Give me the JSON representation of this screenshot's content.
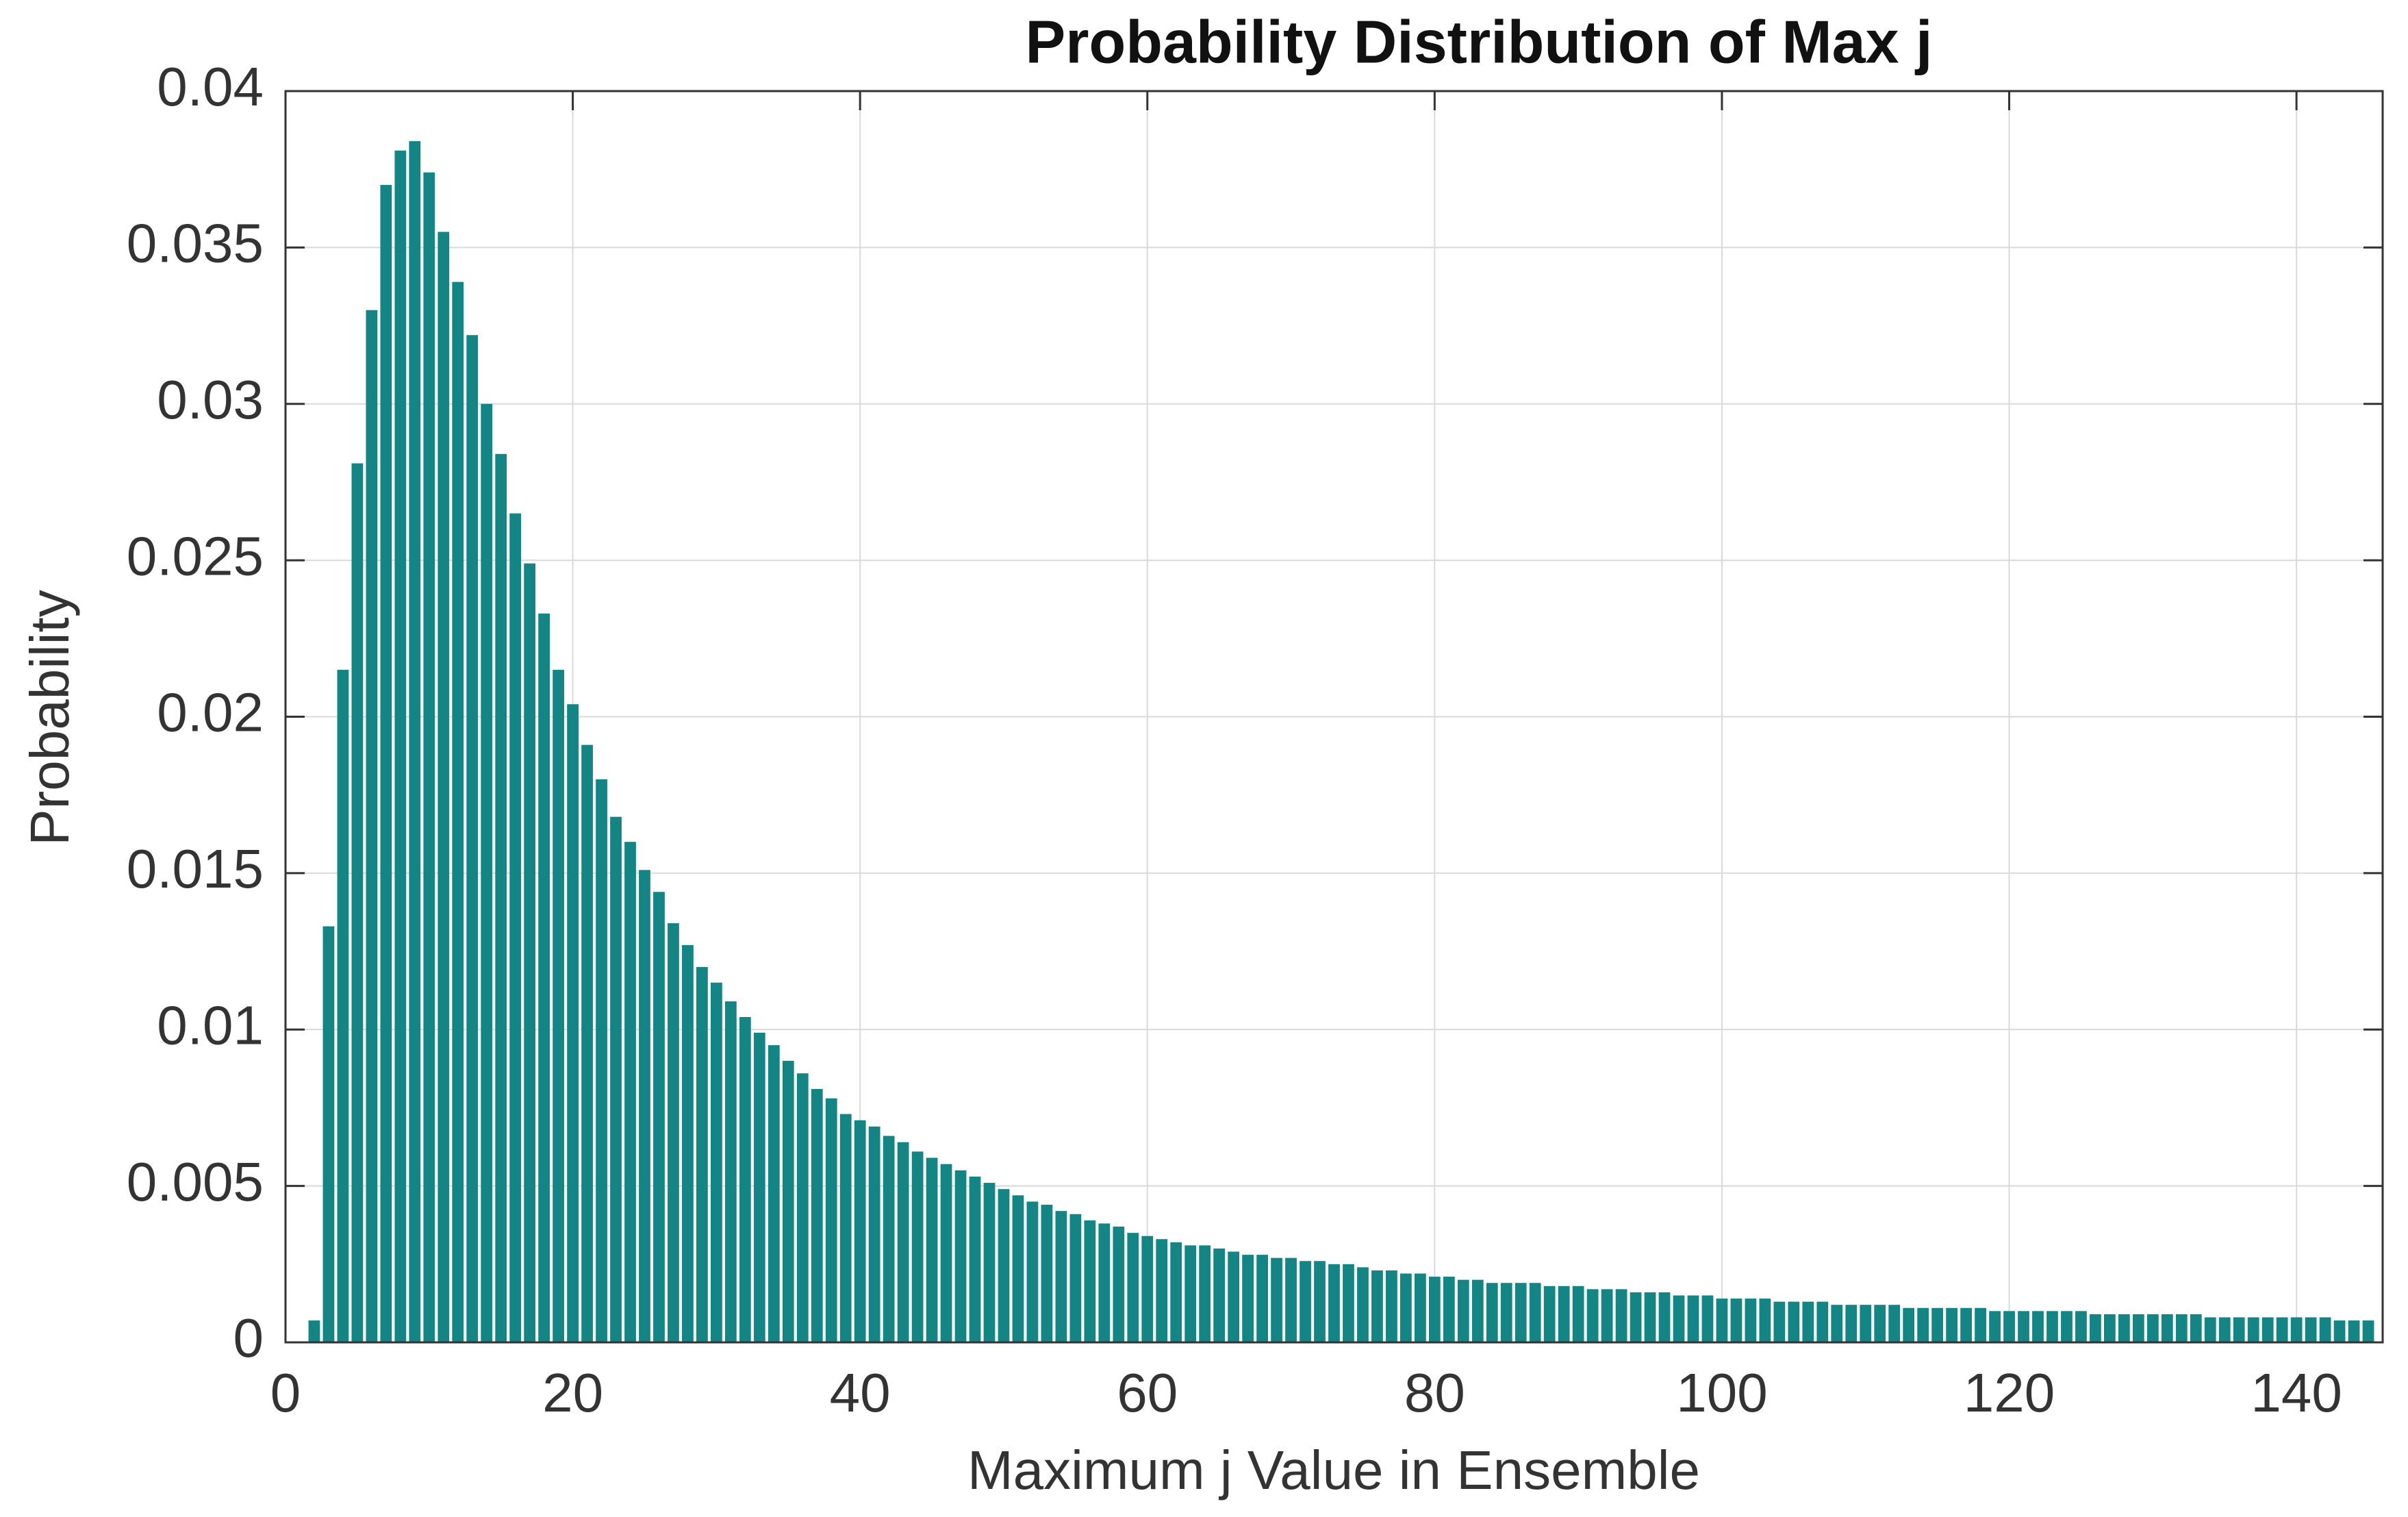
{
  "chart_data": {
    "type": "bar",
    "title": "Probability Distribution of Max j",
    "x_label": "Maximum j Value in Ensemble",
    "y_label": "Probability",
    "x": [
      2,
      3,
      4,
      5,
      6,
      7,
      8,
      9,
      10,
      11,
      12,
      13,
      14,
      15,
      16,
      17,
      18,
      19,
      20,
      21,
      22,
      23,
      24,
      25,
      26,
      27,
      28,
      29,
      30,
      31,
      32,
      33,
      34,
      35,
      36,
      37,
      38,
      39,
      40,
      41,
      42,
      43,
      44,
      45,
      46,
      47,
      48,
      49,
      50,
      51,
      52,
      53,
      54,
      55,
      56,
      57,
      58,
      59,
      60,
      61,
      62,
      63,
      64,
      65,
      66,
      67,
      68,
      69,
      70,
      71,
      72,
      73,
      74,
      75,
      76,
      77,
      78,
      79,
      80,
      81,
      82,
      83,
      84,
      85,
      86,
      87,
      88,
      89,
      90,
      91,
      92,
      93,
      94,
      95,
      96,
      97,
      98,
      99,
      100,
      101,
      102,
      103,
      104,
      105,
      106,
      107,
      108,
      109,
      110,
      111,
      112,
      113,
      114,
      115,
      116,
      117,
      118,
      119,
      120,
      121,
      122,
      123,
      124,
      125,
      126,
      127,
      128,
      129,
      130,
      131,
      132,
      133,
      134,
      135,
      136,
      137,
      138,
      139,
      140,
      141,
      142,
      143,
      144,
      145
    ],
    "values": [
      0.0007,
      0.0133,
      0.0215,
      0.0281,
      0.033,
      0.037,
      0.0381,
      0.0384,
      0.0374,
      0.0355,
      0.0339,
      0.0322,
      0.03,
      0.0284,
      0.0265,
      0.0249,
      0.0233,
      0.0215,
      0.0204,
      0.0191,
      0.018,
      0.0168,
      0.016,
      0.0151,
      0.0144,
      0.0134,
      0.0127,
      0.012,
      0.0115,
      0.0109,
      0.0104,
      0.0099,
      0.0095,
      0.009,
      0.0086,
      0.0081,
      0.0078,
      0.0073,
      0.0071,
      0.0069,
      0.0066,
      0.0064,
      0.0061,
      0.0059,
      0.0057,
      0.0055,
      0.0053,
      0.0051,
      0.0049,
      0.0047,
      0.0045,
      0.0044,
      0.0042,
      0.0041,
      0.0039,
      0.0038,
      0.0037,
      0.0035,
      0.0034,
      0.0033,
      0.0032,
      0.0031,
      0.0031,
      0.003,
      0.0029,
      0.0028,
      0.0028,
      0.0027,
      0.0027,
      0.0026,
      0.0026,
      0.0025,
      0.0025,
      0.0024,
      0.0023,
      0.0023,
      0.0022,
      0.0022,
      0.0021,
      0.0021,
      0.002,
      0.002,
      0.0019,
      0.0019,
      0.0019,
      0.0019,
      0.0018,
      0.0018,
      0.0018,
      0.0017,
      0.0017,
      0.0017,
      0.0016,
      0.0016,
      0.0016,
      0.0015,
      0.0015,
      0.0015,
      0.0014,
      0.0014,
      0.0014,
      0.0014,
      0.0013,
      0.0013,
      0.0013,
      0.0013,
      0.0012,
      0.0012,
      0.0012,
      0.0012,
      0.0012,
      0.0011,
      0.0011,
      0.0011,
      0.0011,
      0.0011,
      0.0011,
      0.001,
      0.001,
      0.001,
      0.001,
      0.001,
      0.001,
      0.001,
      0.0009,
      0.0009,
      0.0009,
      0.0009,
      0.0009,
      0.0009,
      0.0009,
      0.0009,
      0.0008,
      0.0008,
      0.0008,
      0.0008,
      0.0008,
      0.0008,
      0.0008,
      0.0008,
      0.0008,
      0.0007,
      0.0007,
      0.0007
    ],
    "color": "#138585",
    "xlim": [
      0,
      146
    ],
    "xticks": [
      0,
      20,
      40,
      60,
      80,
      100,
      120,
      140
    ],
    "ylim": [
      0,
      0.04
    ],
    "yticks": [
      0,
      0.005,
      0.01,
      0.015,
      0.02,
      0.025,
      0.03,
      0.035,
      0.04
    ],
    "grid": true
  }
}
